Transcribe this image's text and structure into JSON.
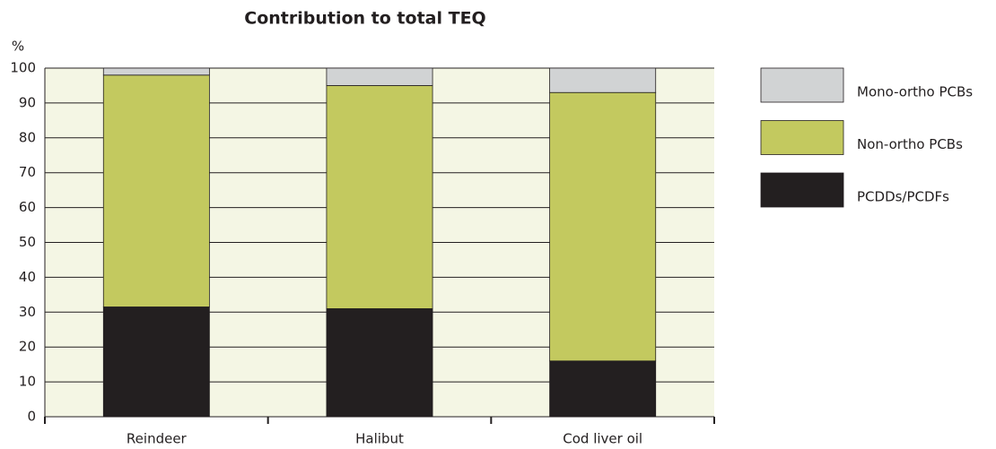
{
  "chart_data": {
    "type": "stacked_bar",
    "title": "Contribution to total TEQ",
    "y_label": "%",
    "categories": [
      "Reindeer",
      "Halibut",
      "Cod liver oil"
    ],
    "series": [
      {
        "name": "PCDDs/PCDFs",
        "color": "#231f20",
        "values": [
          31.5,
          31,
          16
        ]
      },
      {
        "name": "Non-ortho PCBs",
        "color": "#c3c95f",
        "values": [
          66.5,
          64,
          77
        ]
      },
      {
        "name": "Mono-ortho PCBs",
        "color": "#d1d3d4",
        "values": [
          2,
          5,
          7
        ]
      }
    ],
    "ylim": [
      0,
      100
    ],
    "yticks": [
      0,
      10,
      20,
      30,
      40,
      50,
      60,
      70,
      80,
      90,
      100
    ],
    "grid": true,
    "legend": "right"
  }
}
